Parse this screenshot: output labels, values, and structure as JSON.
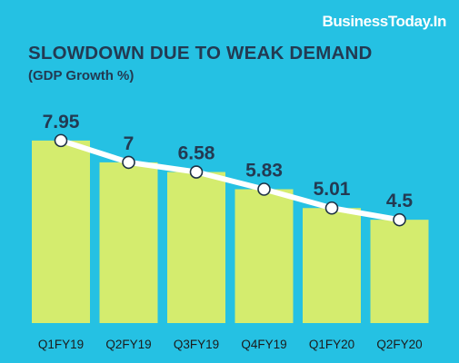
{
  "brand": "BusinessToday.In",
  "chart_data": {
    "type": "bar",
    "title": "SLOWDOWN DUE TO WEAK DEMAND",
    "subtitle": "(GDP Growth %)",
    "categories": [
      "Q1FY19",
      "Q2FY19",
      "Q3FY19",
      "Q4FY19",
      "Q1FY20",
      "Q2FY20"
    ],
    "values": [
      7.95,
      7,
      6.58,
      5.83,
      5.01,
      4.5
    ],
    "value_labels": [
      "7.95",
      "7",
      "6.58",
      "5.83",
      "5.01",
      "4.5"
    ],
    "overlay": "line-with-markers",
    "grid": false,
    "legend": "none",
    "colors": {
      "background": "#25c1e3",
      "bar": "#d4ec6e",
      "line": "#ffffff",
      "marker_fill": "#ffffff",
      "marker_stroke": "#1e3245",
      "text": "#233a52"
    }
  }
}
